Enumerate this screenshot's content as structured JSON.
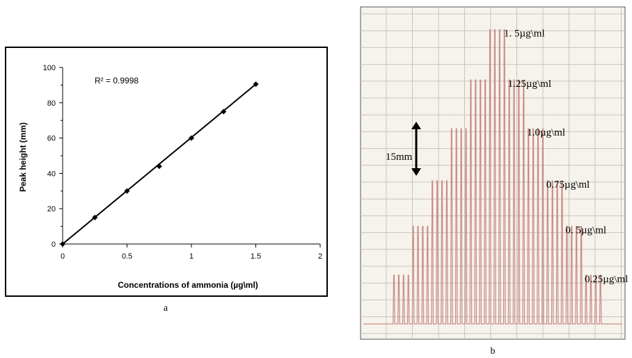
{
  "panel_a": {
    "caption": "a",
    "r2_label": "R² = 0.9998",
    "chart_data": {
      "type": "scatter",
      "title": "",
      "xlabel": "Concentrations of ammonia  (µg\\ml)",
      "ylabel": "Peak height (mm)",
      "xlim": [
        0,
        2
      ],
      "ylim": [
        0,
        100
      ],
      "x_ticks": [
        0,
        0.5,
        1,
        1.5,
        2
      ],
      "y_ticks": [
        0,
        20,
        40,
        60,
        80,
        100
      ],
      "x_tick_labels": [
        "0",
        "0.5",
        "1",
        "1.5",
        "2"
      ],
      "y_tick_labels": [
        "0",
        "20",
        "40",
        "60",
        "80",
        "100"
      ],
      "points": [
        {
          "x": 0,
          "y": 0
        },
        {
          "x": 0.25,
          "y": 15
        },
        {
          "x": 0.5,
          "y": 30
        },
        {
          "x": 0.75,
          "y": 44
        },
        {
          "x": 1.0,
          "y": 60
        },
        {
          "x": 1.25,
          "y": 75
        },
        {
          "x": 1.5,
          "y": 90.5
        }
      ],
      "trendline": {
        "x": [
          0,
          1.5
        ],
        "y": [
          0,
          90.5
        ]
      },
      "grid": false,
      "marker": "diamond",
      "colors": {
        "marker": "#000000",
        "line": "#000000"
      }
    }
  },
  "panel_b": {
    "caption": "b",
    "scale_label": "15mm",
    "peak_groups": [
      {
        "label": "0.25µg\\ml",
        "height_mm": 15,
        "count": 4
      },
      {
        "label": "0. 5µg\\ml",
        "height_mm": 30,
        "count": 4
      },
      {
        "label": "0.75µg\\ml",
        "height_mm": 44,
        "count": 4
      },
      {
        "label": "1.0µg\\ml",
        "height_mm": 60,
        "count": 4
      },
      {
        "label": "1.25µg\\ml",
        "height_mm": 75,
        "count": 4
      },
      {
        "label": "1. 5µg\\ml",
        "height_mm": 90.5,
        "count": 4
      }
    ],
    "colors": {
      "paper": "#f6f3ec",
      "grid": "#c8c4bd",
      "trace": "#c98a85"
    }
  }
}
